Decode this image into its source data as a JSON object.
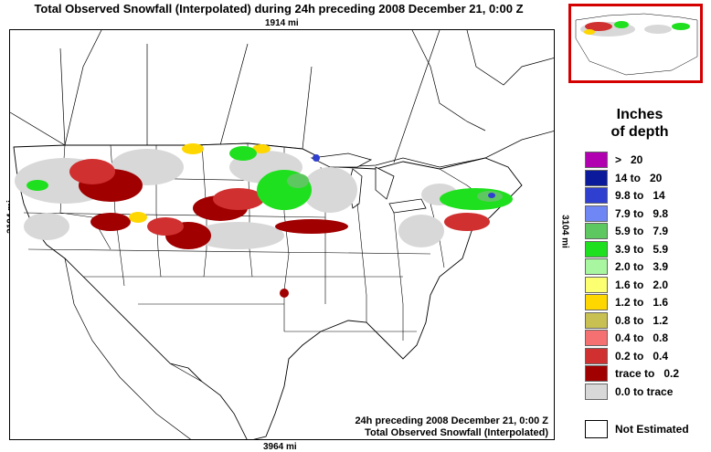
{
  "title": "Total Observed Snowfall (Interpolated) during 24h preceding 2008 December 21, 0:00 Z",
  "dimensions": {
    "top": "1914 mi",
    "bottom": "3964 mi",
    "left": "3104 mi",
    "right": "3104 mi"
  },
  "map_caption": {
    "line1": "24h preceding 2008 December 21, 0:00 Z",
    "line2": "Total Observed Snowfall (Interpolated)"
  },
  "legend": {
    "title_line1": "Inches",
    "title_line2": "of depth",
    "items": [
      {
        "label": ">   20",
        "color": "#b000b0"
      },
      {
        "label": "14 to   20",
        "color": "#0a1a9a"
      },
      {
        "label": "9.8 to   14",
        "color": "#2f3fd0"
      },
      {
        "label": "7.9 to   9.8",
        "color": "#6f86f5"
      },
      {
        "label": "5.9 to   7.9",
        "color": "#5ec860"
      },
      {
        "label": "3.9 to   5.9",
        "color": "#1fe01f"
      },
      {
        "label": "2.0 to   3.9",
        "color": "#a8f7a0"
      },
      {
        "label": "1.6 to   2.0",
        "color": "#fbff70"
      },
      {
        "label": "1.2 to   1.6",
        "color": "#ffd700"
      },
      {
        "label": "0.8 to   1.2",
        "color": "#c8c050"
      },
      {
        "label": "0.4 to   0.8",
        "color": "#f57070"
      },
      {
        "label": "0.2 to   0.4",
        "color": "#d03030"
      },
      {
        "label": "trace to   0.2",
        "color": "#a00000"
      },
      {
        "label": "0.0 to trace",
        "color": "#d8d8d8"
      }
    ],
    "not_estimated": "Not Estimated"
  }
}
